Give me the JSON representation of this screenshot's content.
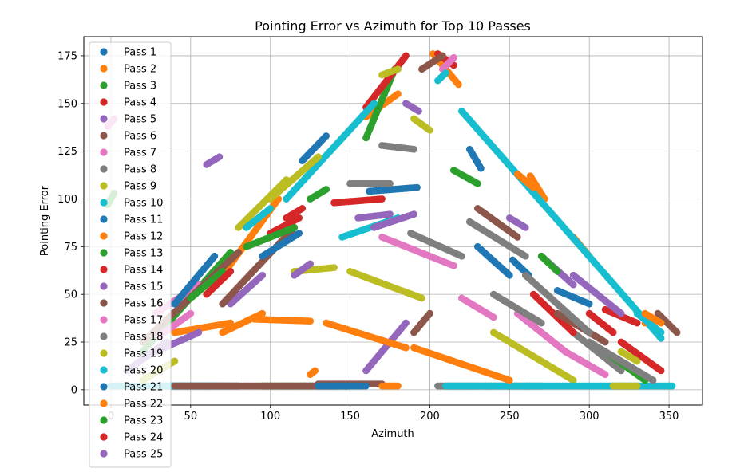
{
  "chart_data": {
    "type": "scatter",
    "title": "Pointing Error vs Azimuth for Top 10 Passes",
    "xlabel": "Azimuth",
    "ylabel": "Pointing Error",
    "xlim": [
      -17,
      371
    ],
    "ylim": [
      -8,
      185
    ],
    "xticks": [
      0,
      50,
      100,
      150,
      200,
      250,
      300,
      350
    ],
    "yticks": [
      0,
      25,
      50,
      75,
      100,
      125,
      150,
      175
    ],
    "grid": true,
    "legend_position": "upper-left",
    "palette": [
      "#1f77b4",
      "#ff7f0e",
      "#2ca02c",
      "#d62728",
      "#9467bd",
      "#8c564b",
      "#e377c2",
      "#7f7f7f",
      "#bcbd22",
      "#17becf"
    ],
    "series": [
      {
        "name": "Pass 1",
        "segments": [
          [
            [
              120,
              120
            ],
            [
              135,
              133
            ]
          ],
          [
            [
              162,
              104
            ],
            [
              192,
              106
            ]
          ],
          [
            [
              225,
              126
            ],
            [
              232,
              116
            ]
          ],
          [
            [
              252,
              68
            ],
            [
              262,
              60
            ]
          ],
          [
            [
              30,
              2
            ],
            [
              80,
              2
            ]
          ]
        ]
      },
      {
        "name": "Pass 2",
        "segments": [
          [
            [
              70,
              60
            ],
            [
              105,
              100
            ]
          ],
          [
            [
              160,
              143
            ],
            [
              180,
              155
            ]
          ],
          [
            [
              202,
              176
            ],
            [
              218,
              160
            ]
          ],
          [
            [
              263,
              112
            ],
            [
              272,
              100
            ]
          ],
          [
            [
              290,
              80
            ],
            [
              300,
              70
            ]
          ]
        ]
      },
      {
        "name": "Pass 3",
        "segments": [
          [
            [
              20,
              20
            ],
            [
              75,
              72
            ]
          ],
          [
            [
              160,
              132
            ],
            [
              178,
              168
            ]
          ],
          [
            [
              215,
              115
            ],
            [
              230,
              108
            ]
          ],
          [
            [
              95,
              2
            ],
            [
              150,
              2
            ]
          ]
        ]
      },
      {
        "name": "Pass 4",
        "segments": [
          [
            [
              100,
              82
            ],
            [
              118,
              90
            ]
          ],
          [
            [
              160,
              148
            ],
            [
              185,
              175
            ]
          ],
          [
            [
              205,
              176
            ],
            [
              215,
              170
            ]
          ],
          [
            [
              310,
              42
            ],
            [
              330,
              35
            ]
          ]
        ]
      },
      {
        "name": "Pass 5",
        "segments": [
          [
            [
              75,
              45
            ],
            [
              95,
              60
            ]
          ],
          [
            [
              160,
              10
            ],
            [
              185,
              35
            ]
          ],
          [
            [
              185,
              150
            ],
            [
              193,
              146
            ]
          ],
          [
            [
              270,
              70
            ],
            [
              290,
              55
            ]
          ]
        ]
      },
      {
        "name": "Pass 6",
        "segments": [
          [
            [
              70,
              45
            ],
            [
              115,
              85
            ]
          ],
          [
            [
              190,
              30
            ],
            [
              200,
              40
            ]
          ],
          [
            [
              195,
              168
            ],
            [
              208,
              175
            ]
          ],
          [
            [
              130,
              3
            ],
            [
              170,
              3
            ]
          ],
          [
            [
              343,
              40
            ],
            [
              355,
              30
            ]
          ]
        ]
      },
      {
        "name": "Pass 7",
        "segments": [
          [
            [
              28,
              40
            ],
            [
              55,
              55
            ]
          ],
          [
            [
              170,
              80
            ],
            [
              215,
              65
            ]
          ],
          [
            [
              208,
              168
            ],
            [
              215,
              174
            ]
          ],
          [
            [
              255,
              40
            ],
            [
              285,
              20
            ]
          ]
        ]
      },
      {
        "name": "Pass 8",
        "segments": [
          [
            [
              170,
              128
            ],
            [
              190,
              126
            ]
          ],
          [
            [
              188,
              82
            ],
            [
              220,
              70
            ]
          ],
          [
            [
              240,
              50
            ],
            [
              270,
              35
            ]
          ],
          [
            [
              290,
              30
            ],
            [
              320,
              10
            ]
          ],
          [
            [
              205,
              2
            ],
            [
              270,
              2
            ]
          ]
        ]
      },
      {
        "name": "Pass 9",
        "segments": [
          [
            [
              80,
              85
            ],
            [
              110,
              110
            ]
          ],
          [
            [
              115,
              62
            ],
            [
              140,
              64
            ]
          ],
          [
            [
              150,
              62
            ],
            [
              195,
              48
            ]
          ],
          [
            [
              240,
              30
            ],
            [
              290,
              5
            ]
          ],
          [
            [
              190,
              142
            ],
            [
              200,
              136
            ]
          ]
        ]
      },
      {
        "name": "Pass 10",
        "segments": [
          [
            [
              0,
              2
            ],
            [
              70,
              2
            ]
          ],
          [
            [
              110,
              100
            ],
            [
              165,
              150
            ]
          ],
          [
            [
              220,
              146
            ],
            [
              345,
              27
            ]
          ],
          [
            [
              145,
              80
            ],
            [
              180,
              90
            ]
          ],
          [
            [
              210,
              2
            ],
            [
              352,
              2
            ]
          ]
        ]
      },
      {
        "name": "Pass 11",
        "segments": [
          [
            [
              95,
              70
            ],
            [
              118,
              82
            ]
          ],
          [
            [
              280,
              52
            ],
            [
              300,
              45
            ]
          ]
        ]
      },
      {
        "name": "Pass 12",
        "segments": [
          [
            [
              40,
              30
            ],
            [
              75,
              35
            ]
          ],
          [
            [
              90,
              37
            ],
            [
              125,
              36
            ]
          ],
          [
            [
              135,
              35
            ],
            [
              185,
              22
            ]
          ],
          [
            [
              190,
              22
            ],
            [
              250,
              5
            ]
          ],
          [
            [
              125,
              8
            ],
            [
              128,
              10
            ]
          ],
          [
            [
              170,
              2
            ],
            [
              180,
              2
            ]
          ],
          [
            [
              335,
              35
            ],
            [
              340,
              36
            ]
          ]
        ]
      },
      {
        "name": "Pass 13",
        "segments": [
          [
            [
              -2,
              97
            ],
            [
              2,
              103
            ]
          ],
          [
            [
              85,
              75
            ],
            [
              115,
              85
            ]
          ],
          [
            [
              310,
              20
            ],
            [
              335,
              5
            ]
          ]
        ]
      },
      {
        "name": "Pass 14",
        "segments": [
          [
            [
              140,
              98
            ],
            [
              170,
              100
            ]
          ],
          [
            [
              265,
              50
            ],
            [
              290,
              30
            ]
          ],
          [
            [
              320,
              25
            ],
            [
              345,
              10
            ]
          ]
        ]
      },
      {
        "name": "Pass 15",
        "segments": [
          [
            [
              28,
              20
            ],
            [
              55,
              30
            ]
          ],
          [
            [
              60,
              118
            ],
            [
              68,
              122
            ]
          ],
          [
            [
              115,
              60
            ],
            [
              125,
              66
            ]
          ],
          [
            [
              165,
              85
            ],
            [
              190,
              92
            ]
          ],
          [
            [
              290,
              60
            ],
            [
              320,
              40
            ]
          ]
        ]
      },
      {
        "name": "Pass 16",
        "segments": [
          [
            [
              20,
              25
            ],
            [
              80,
              72
            ]
          ],
          [
            [
              230,
              95
            ],
            [
              255,
              80
            ]
          ],
          [
            [
              280,
              40
            ],
            [
              310,
              25
            ]
          ],
          [
            [
              40,
              2
            ],
            [
              140,
              2
            ]
          ]
        ]
      },
      {
        "name": "Pass 17",
        "segments": [
          [
            [
              -2,
              138
            ],
            [
              2,
              142
            ]
          ],
          [
            [
              30,
              28
            ],
            [
              50,
              40
            ]
          ],
          [
            [
              220,
              48
            ],
            [
              240,
              38
            ]
          ],
          [
            [
              285,
              20
            ],
            [
              310,
              8
            ]
          ]
        ]
      },
      {
        "name": "Pass 18",
        "segments": [
          [
            [
              150,
              108
            ],
            [
              175,
              108
            ]
          ],
          [
            [
              225,
              88
            ],
            [
              260,
              70
            ]
          ],
          [
            [
              260,
              60
            ],
            [
              300,
              30
            ]
          ],
          [
            [
              300,
              25
            ],
            [
              340,
              5
            ]
          ]
        ]
      },
      {
        "name": "Pass 19",
        "segments": [
          [
            [
              20,
              5
            ],
            [
              40,
              15
            ]
          ],
          [
            [
              100,
              100
            ],
            [
              130,
              122
            ]
          ],
          [
            [
              170,
              165
            ],
            [
              180,
              168
            ]
          ],
          [
            [
              320,
              20
            ],
            [
              330,
              15
            ]
          ],
          [
            [
              315,
              2
            ],
            [
              330,
              2
            ]
          ]
        ]
      },
      {
        "name": "Pass 20",
        "segments": [
          [
            [
              85,
              85
            ],
            [
              100,
              95
            ]
          ],
          [
            [
              205,
              162
            ],
            [
              210,
              166
            ]
          ],
          [
            [
              330,
              40
            ],
            [
              345,
              30
            ]
          ]
        ]
      },
      {
        "name": "Pass 21",
        "segments": [
          [
            [
              40,
              45
            ],
            [
              65,
              70
            ]
          ],
          [
            [
              130,
              2
            ],
            [
              160,
              2
            ]
          ],
          [
            [
              230,
              75
            ],
            [
              250,
              60
            ]
          ]
        ]
      },
      {
        "name": "Pass 22",
        "segments": [
          [
            [
              70,
              30
            ],
            [
              95,
              40
            ]
          ],
          [
            [
              255,
              113
            ],
            [
              265,
              106
            ]
          ],
          [
            [
              335,
              40
            ],
            [
              345,
              35
            ]
          ]
        ]
      },
      {
        "name": "Pass 23",
        "segments": [
          [
            [
              50,
              48
            ],
            [
              70,
              62
            ]
          ],
          [
            [
              125,
              100
            ],
            [
              135,
              105
            ]
          ],
          [
            [
              270,
              70
            ],
            [
              280,
              62
            ]
          ]
        ]
      },
      {
        "name": "Pass 24",
        "segments": [
          [
            [
              60,
              50
            ],
            [
              75,
              62
            ]
          ],
          [
            [
              110,
              90
            ],
            [
              120,
              95
            ]
          ],
          [
            [
              300,
              40
            ],
            [
              315,
              30
            ]
          ]
        ]
      },
      {
        "name": "Pass 25",
        "segments": [
          [
            [
              10,
              10
            ],
            [
              35,
              25
            ]
          ],
          [
            [
              155,
              90
            ],
            [
              175,
              92
            ]
          ],
          [
            [
              250,
              90
            ],
            [
              260,
              85
            ]
          ]
        ]
      }
    ]
  }
}
